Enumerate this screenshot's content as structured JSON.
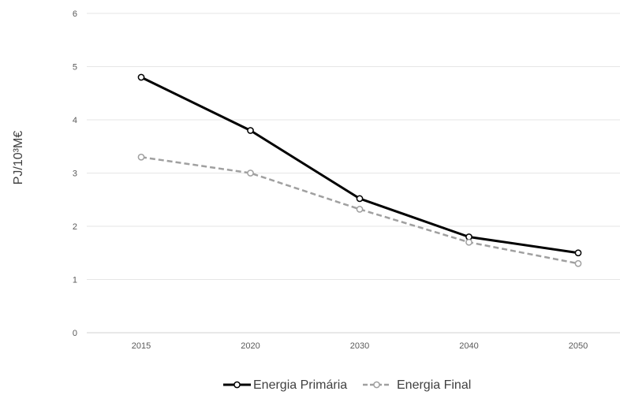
{
  "chart_data": {
    "type": "line",
    "title": "",
    "xlabel": "",
    "ylabel": "PJ/10³M€",
    "categories": [
      "2015",
      "2020",
      "2030",
      "2040",
      "2050"
    ],
    "ylim": [
      0,
      6
    ],
    "yticks": [
      "0",
      "1",
      "2",
      "3",
      "4",
      "5",
      "6"
    ],
    "grid": true,
    "legend_position": "bottom",
    "series": [
      {
        "name": "Energia Primária",
        "values": [
          4.8,
          3.8,
          2.52,
          1.8,
          1.5
        ],
        "color": "#000000",
        "dash": false
      },
      {
        "name": "Energia Final",
        "values": [
          3.3,
          3.0,
          2.32,
          1.7,
          1.3
        ],
        "color": "#a0a0a0",
        "dash": true
      }
    ]
  }
}
